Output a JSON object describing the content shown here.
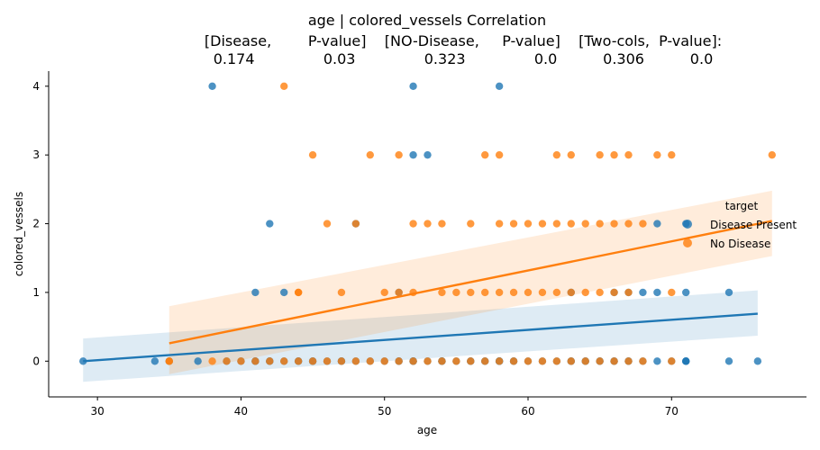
{
  "chart_data": {
    "type": "scatter",
    "title_lines": [
      "age | colored_vessels    Correlation",
      "[Disease,        P-value]    [NO-Disease,     P-value]    [Two-cols,  P-value]:",
      "0.174               0.03               0.323               0.0          0.306          0.0"
    ],
    "xlabel": "age",
    "ylabel": "colored_vessels",
    "xlim": [
      26.6,
      79.4
    ],
    "ylim": [
      -0.52,
      4.22
    ],
    "xticks": [
      30,
      40,
      50,
      60,
      70
    ],
    "yticks": [
      0,
      1,
      2,
      3,
      4
    ],
    "grid": false,
    "legend": {
      "title": "target",
      "placement": "right",
      "entries": [
        "Disease Present",
        "No Disease"
      ]
    },
    "series": [
      {
        "name": "Disease Present",
        "color": "#1f77b4",
        "x": [
          29,
          34,
          35,
          37,
          39,
          40,
          41,
          41,
          42,
          42,
          43,
          44,
          44,
          45,
          45,
          46,
          47,
          47,
          48,
          49,
          50,
          51,
          51,
          52,
          52,
          52,
          53,
          54,
          54,
          54,
          55,
          56,
          56,
          57,
          57,
          58,
          58,
          58,
          58,
          59,
          59,
          60,
          61,
          62,
          63,
          63,
          64,
          64,
          65,
          65,
          66,
          66,
          67,
          67,
          68,
          69,
          70,
          71,
          71,
          71,
          74,
          76,
          38,
          52,
          58,
          52,
          53,
          42,
          48,
          69,
          71,
          41,
          43,
          51,
          63,
          66,
          67,
          68,
          69,
          71,
          74
        ],
        "y": [
          0,
          0,
          0,
          0,
          0,
          0,
          0,
          0,
          0,
          0,
          0,
          0,
          0,
          0,
          0,
          0,
          0,
          0,
          0,
          0,
          0,
          0,
          0,
          0,
          0,
          0,
          0,
          0,
          0,
          0,
          0,
          0,
          0,
          0,
          0,
          0,
          0,
          0,
          0,
          0,
          0,
          0,
          0,
          0,
          0,
          0,
          0,
          0,
          0,
          0,
          0,
          0,
          0,
          0,
          0,
          0,
          0,
          0,
          0,
          0,
          0,
          0,
          4,
          4,
          4,
          3,
          3,
          2,
          2,
          2,
          2,
          1,
          1,
          1,
          1,
          1,
          1,
          1,
          1,
          1,
          1
        ],
        "regression": {
          "x": [
            29,
            76
          ],
          "y": [
            0.0,
            0.69
          ],
          "ci_upper": [
            0.33,
            1.03
          ],
          "ci_lower": [
            -0.3,
            0.37
          ]
        }
      },
      {
        "name": "No Disease",
        "color": "#ff7f0e",
        "x": [
          35,
          35,
          38,
          39,
          40,
          41,
          42,
          43,
          44,
          45,
          46,
          47,
          48,
          49,
          50,
          51,
          52,
          53,
          54,
          55,
          56,
          57,
          58,
          59,
          60,
          61,
          62,
          63,
          64,
          65,
          66,
          67,
          68,
          70,
          44,
          44,
          47,
          50,
          51,
          52,
          54,
          55,
          56,
          57,
          58,
          59,
          60,
          61,
          62,
          63,
          64,
          65,
          66,
          67,
          70,
          46,
          48,
          52,
          53,
          54,
          56,
          58,
          59,
          60,
          61,
          62,
          63,
          64,
          65,
          66,
          67,
          68,
          45,
          49,
          51,
          57,
          58,
          62,
          63,
          65,
          66,
          67,
          69,
          70,
          77,
          43
        ],
        "y": [
          0,
          0,
          0,
          0,
          0,
          0,
          0,
          0,
          0,
          0,
          0,
          0,
          0,
          0,
          0,
          0,
          0,
          0,
          0,
          0,
          0,
          0,
          0,
          0,
          0,
          0,
          0,
          0,
          0,
          0,
          0,
          0,
          0,
          0,
          1,
          1,
          1,
          1,
          1,
          1,
          1,
          1,
          1,
          1,
          1,
          1,
          1,
          1,
          1,
          1,
          1,
          1,
          1,
          1,
          1,
          2,
          2,
          2,
          2,
          2,
          2,
          2,
          2,
          2,
          2,
          2,
          2,
          2,
          2,
          2,
          2,
          2,
          3,
          3,
          3,
          3,
          3,
          3,
          3,
          3,
          3,
          3,
          3,
          3,
          3,
          4
        ],
        "regression": {
          "x": [
            35,
            77
          ],
          "y": [
            0.26,
            2.04
          ],
          "ci_upper": [
            0.8,
            2.48
          ],
          "ci_lower": [
            -0.19,
            1.53
          ]
        }
      }
    ]
  }
}
